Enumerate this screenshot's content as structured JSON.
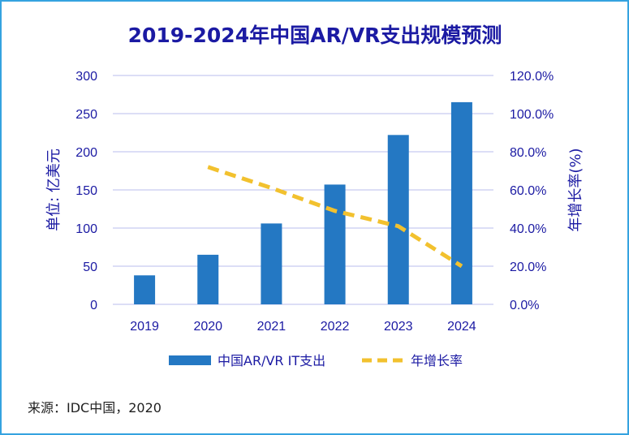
{
  "chart_data": {
    "type": "bar",
    "title": "2019-2024年中国AR/VR支出规模预测",
    "categories": [
      "2019",
      "2020",
      "2021",
      "2022",
      "2023",
      "2024"
    ],
    "series": [
      {
        "name": "中国AR/VR IT支出",
        "type": "bar",
        "axis": "left",
        "color": "#2478c3",
        "values": [
          38,
          65,
          106,
          157,
          222,
          265
        ]
      },
      {
        "name": "年增长率",
        "type": "line",
        "style": "dashed",
        "axis": "right",
        "color": "#f2c12e",
        "values": [
          null,
          72,
          61,
          49,
          41,
          20
        ]
      }
    ],
    "ylabel": "单位: 亿美元",
    "ylim": [
      0,
      300
    ],
    "yticks": [
      "0",
      "50",
      "100",
      "150",
      "200",
      "250",
      "300"
    ],
    "y2label": "年增长率(%)",
    "y2lim": [
      0,
      120
    ],
    "y2ticks": [
      "0.0%",
      "20.0%",
      "40.0%",
      "60.0%",
      "80.0%",
      "100.0%",
      "120.0%"
    ],
    "grid": true,
    "legend_position": "bottom"
  },
  "colors": {
    "title": "#1b1aa3",
    "grid": "#b9bdec",
    "border": "#35a3e0"
  },
  "source_note": "来源：IDC中国，2020"
}
